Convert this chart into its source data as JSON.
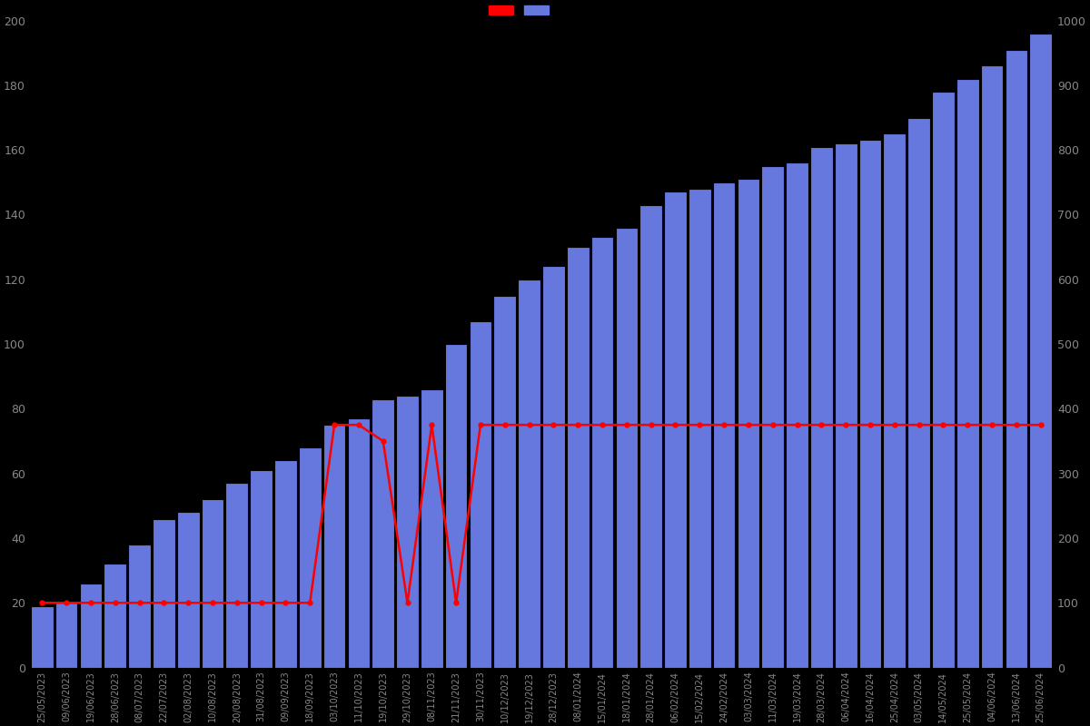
{
  "background_color": "#000000",
  "bar_color": "#6677dd",
  "bar_edge_color": "#000000",
  "line_color": "#ff0000",
  "left_ylim": [
    0,
    200
  ],
  "right_ylim": [
    0,
    1000
  ],
  "left_yticks": [
    0,
    20,
    40,
    60,
    80,
    100,
    120,
    140,
    160,
    180,
    200
  ],
  "right_yticks": [
    0,
    100,
    200,
    300,
    400,
    500,
    600,
    700,
    800,
    900,
    1000
  ],
  "dates": [
    "25/05/2023",
    "09/06/2023",
    "19/06/2023",
    "28/06/2023",
    "08/07/2023",
    "22/07/2023",
    "02/08/2023",
    "10/08/2023",
    "20/08/2023",
    "31/08/2023",
    "09/09/2023",
    "18/09/2023",
    "03/10/2023",
    "11/10/2023",
    "19/10/2023",
    "29/10/2023",
    "08/11/2023",
    "21/11/2023",
    "30/11/2023",
    "10/12/2023",
    "19/12/2023",
    "28/12/2023",
    "08/01/2024",
    "15/01/2024",
    "18/01/2024",
    "28/01/2024",
    "06/02/2024",
    "15/02/2024",
    "24/02/2024",
    "03/03/2024",
    "11/03/2024",
    "19/03/2024",
    "28/03/2024",
    "06/04/2024",
    "16/04/2024",
    "25/04/2024",
    "03/05/2024",
    "14/05/2024",
    "25/05/2024",
    "04/06/2024",
    "13/06/2024",
    "25/06/2024"
  ],
  "bar_values": [
    19,
    20,
    26,
    32,
    38,
    46,
    48,
    52,
    57,
    61,
    64,
    68,
    75,
    77,
    83,
    84,
    86,
    100,
    107,
    115,
    120,
    124,
    130,
    133,
    136,
    143,
    147,
    148,
    150,
    151,
    155,
    156,
    161,
    162,
    163,
    165,
    170,
    178,
    182,
    186,
    191,
    196
  ],
  "line_values_left": [
    20,
    20,
    20,
    20,
    20,
    20,
    20,
    20,
    20,
    20,
    20,
    20,
    75,
    75,
    70,
    20,
    75,
    20,
    75,
    75,
    75,
    75,
    75,
    75,
    75,
    75,
    75,
    75,
    75,
    75,
    75,
    75,
    75,
    75,
    75,
    75,
    75,
    75,
    75,
    75,
    75,
    75
  ],
  "tick_label_color": "#888888",
  "legend_red_label": "",
  "legend_blue_label": ""
}
